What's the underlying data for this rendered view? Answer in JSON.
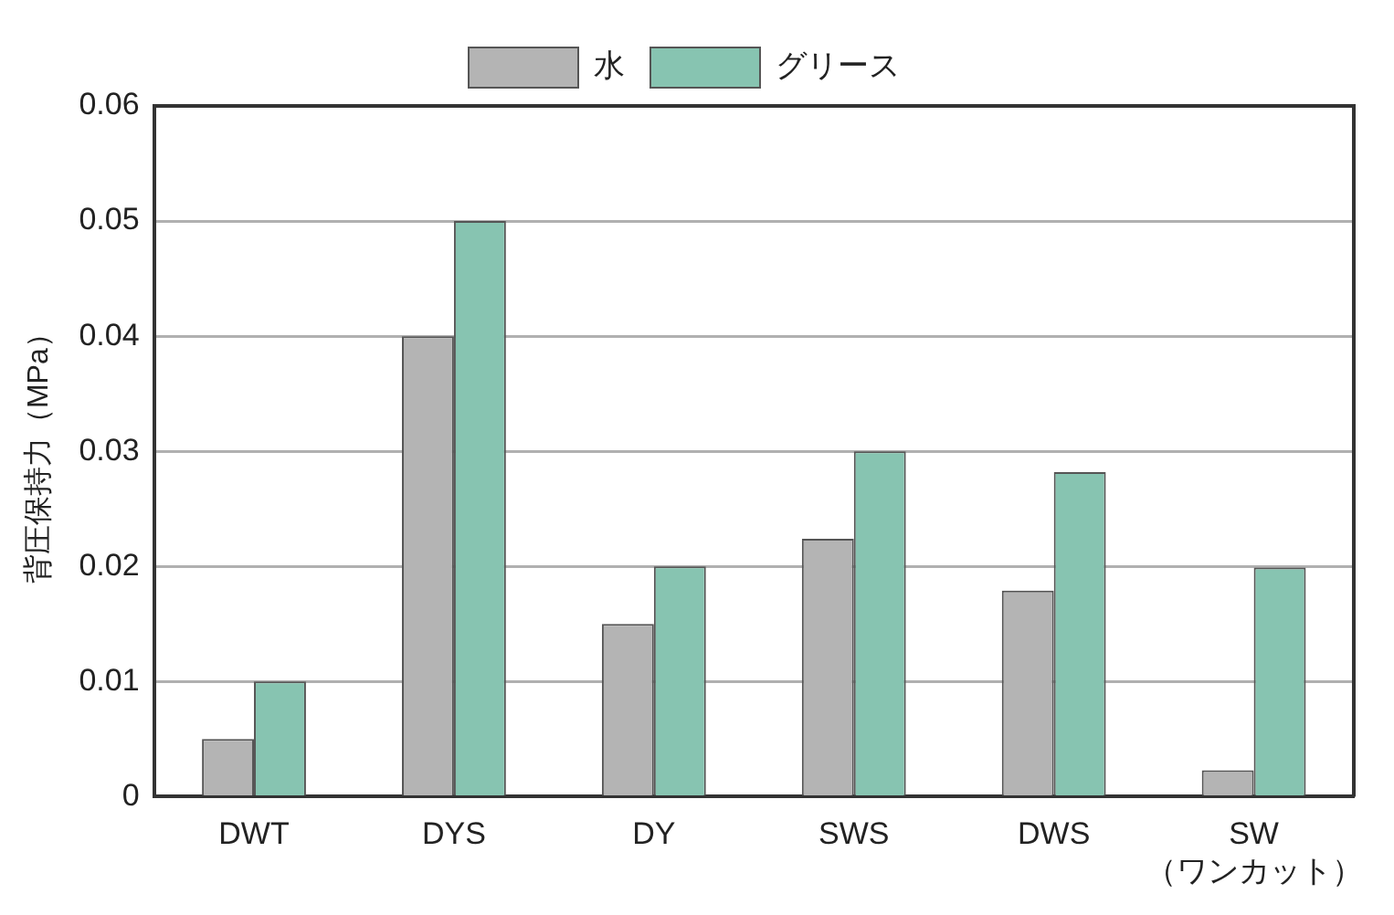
{
  "chart_data": {
    "type": "bar",
    "ylabel": "背圧保持力（MPa）",
    "categories": [
      "DWT",
      "DYS",
      "DY",
      "SWS",
      "DWS",
      "SW\n（ワンカット）"
    ],
    "series": [
      {
        "name": "水",
        "color": "#b4b4b4",
        "values": [
          0.005,
          0.04,
          0.015,
          0.0224,
          0.0179,
          0.0023
        ]
      },
      {
        "name": "グリース",
        "color": "#87c4b1",
        "values": [
          0.01,
          0.05,
          0.02,
          0.03,
          0.0282,
          0.0199
        ]
      }
    ],
    "ylim": [
      0,
      0.06
    ],
    "yticks": [
      0,
      0.01,
      0.02,
      0.03,
      0.04,
      0.05,
      0.06
    ],
    "grid": "y",
    "legend": "top"
  }
}
